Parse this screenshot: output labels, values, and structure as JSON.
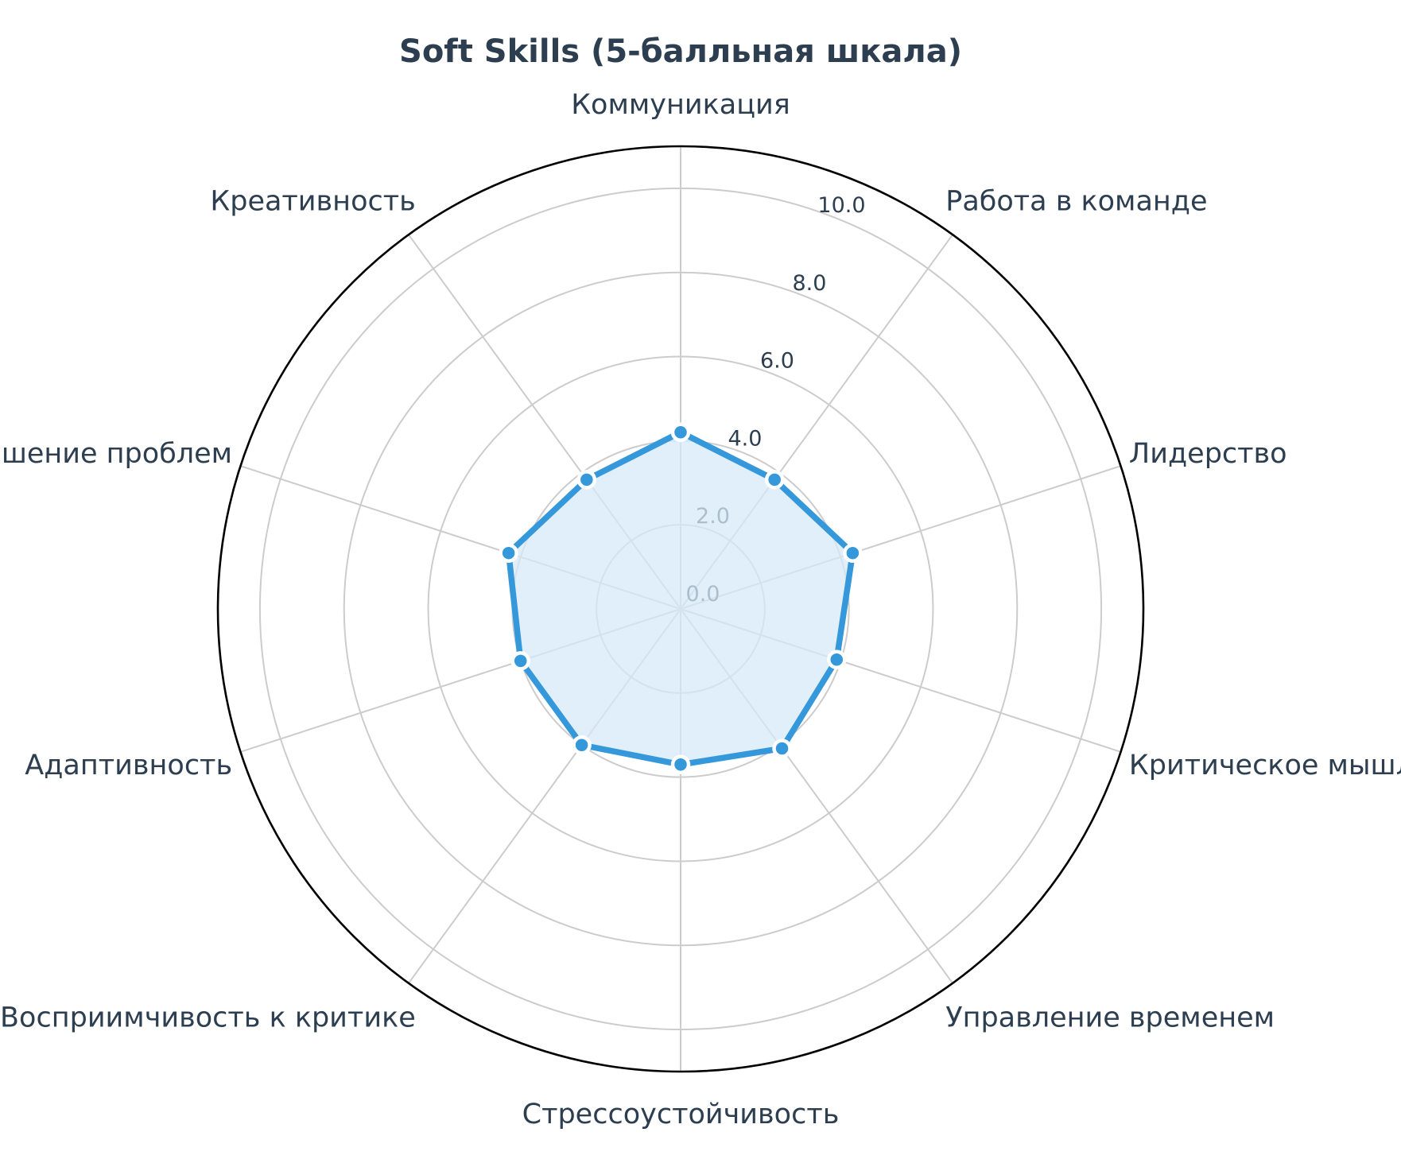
{
  "chart_data": {
    "type": "radar",
    "title": "Soft Skills (5-балльная шкала)",
    "categories": [
      "Коммуникация",
      "Работа в команде",
      "Лидерство",
      "Критическое мышление",
      "Управление временем",
      "Стрессоустойчивость",
      "Восприимчивость к критике",
      "Адаптивность",
      "Решение проблем",
      "Креативность"
    ],
    "series": [
      {
        "values": [
          4.2,
          3.8,
          4.3,
          3.9,
          4.1,
          3.7,
          4.0,
          4.0,
          4.3,
          3.8
        ]
      }
    ],
    "rlim": [
      0,
      11
    ],
    "ticks": [
      0,
      2,
      4,
      6,
      8,
      10
    ],
    "tick_labels": [
      "0.0",
      "2.0",
      "4.0",
      "6.0",
      "8.0",
      "10.0"
    ],
    "grid": true,
    "colors": {
      "line": "#3498db",
      "fill": "#d6e9f8",
      "text": "#2c3e50",
      "grid": "#cccccc"
    }
  }
}
